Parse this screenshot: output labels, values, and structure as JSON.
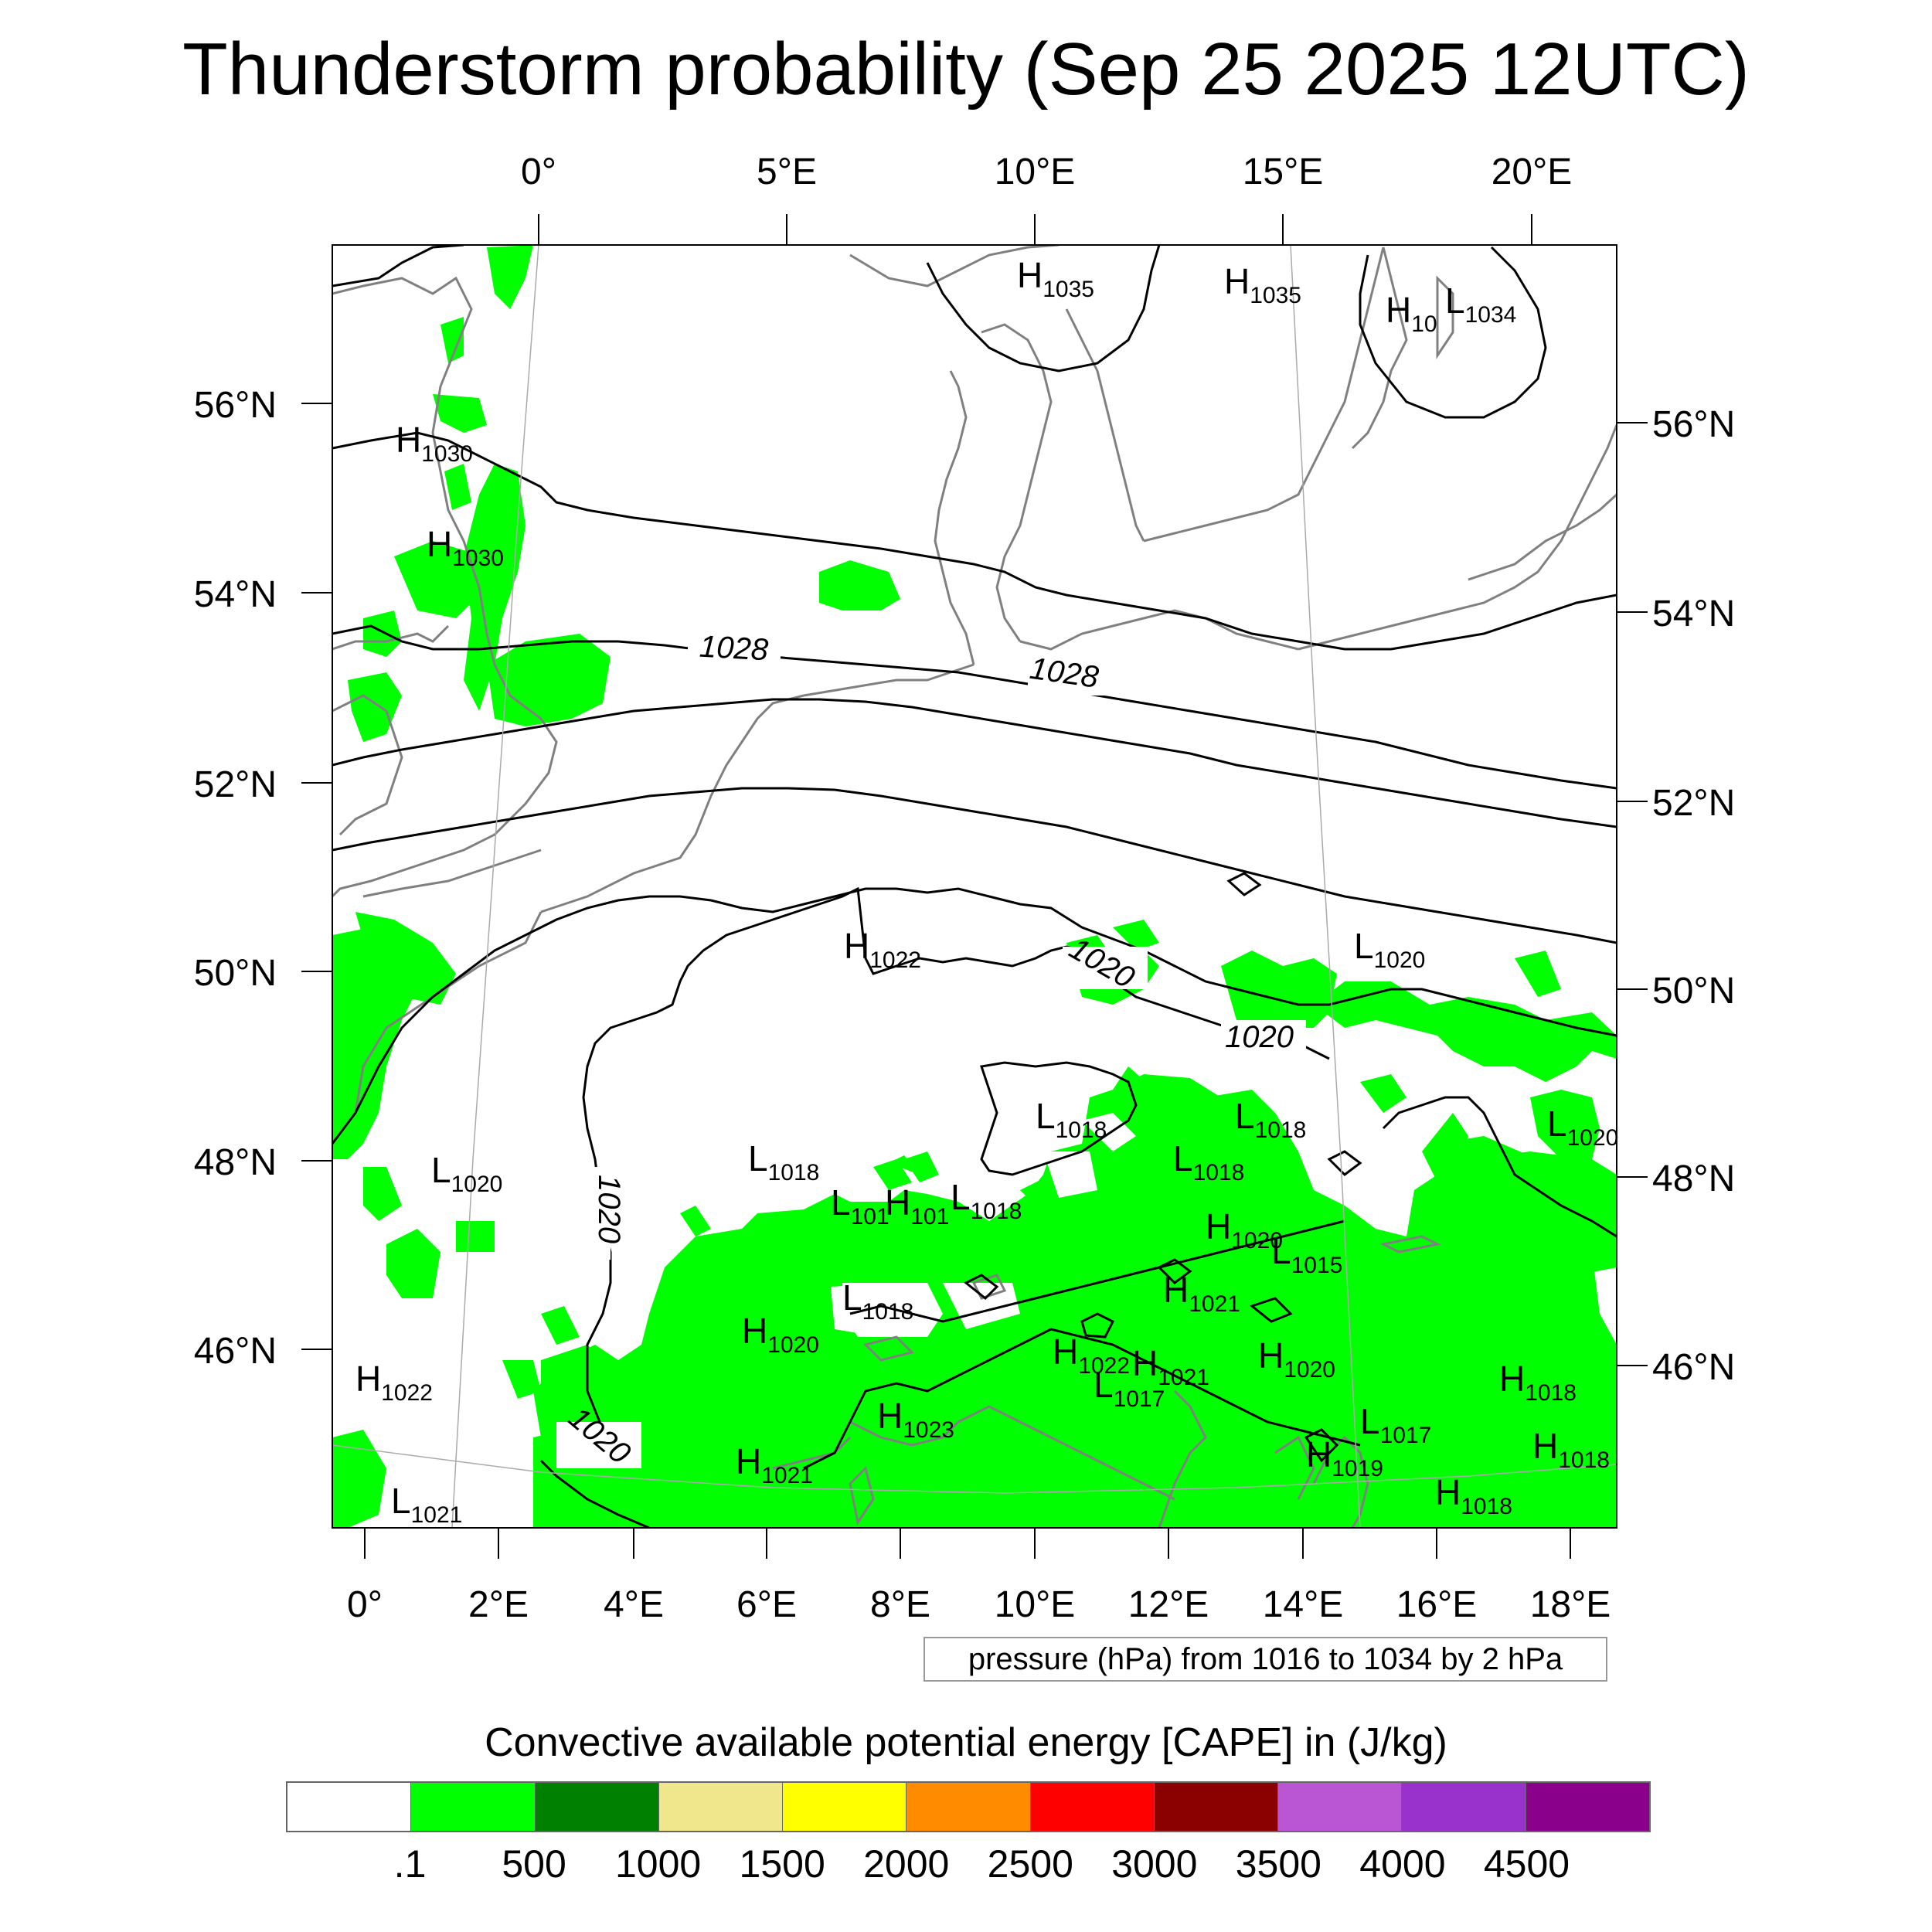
{
  "title": "Thunderstorm probability (Sep 25 2025 12UTC)",
  "top_lon_labels": [
    "0°",
    "5°E",
    "10°E",
    "15°E",
    "20°E"
  ],
  "bottom_lon_labels": [
    "0°",
    "2°E",
    "4°E",
    "6°E",
    "8°E",
    "10°E",
    "12°E",
    "14°E",
    "16°E",
    "18°E"
  ],
  "left_lat_labels": [
    "56°N",
    "54°N",
    "52°N",
    "50°N",
    "48°N",
    "46°N"
  ],
  "right_lat_labels": [
    "56°N",
    "54°N",
    "52°N",
    "50°N",
    "48°N",
    "46°N"
  ],
  "contour_labels": [
    "1028",
    "1028",
    "1020",
    "1020",
    "1020",
    "1020"
  ],
  "pressure_centers": [
    {
      "type": "H",
      "value": "1035"
    },
    {
      "type": "H",
      "value": "1035"
    },
    {
      "type": "H",
      "value": "10"
    },
    {
      "type": "L",
      "value": "1034"
    },
    {
      "type": "H",
      "value": "1030"
    },
    {
      "type": "H",
      "value": "1030"
    },
    {
      "type": "H",
      "value": "1022"
    },
    {
      "type": "L",
      "value": "1020"
    },
    {
      "type": "L",
      "value": "1018"
    },
    {
      "type": "L",
      "value": "1018"
    },
    {
      "type": "L",
      "value": "1020"
    },
    {
      "type": "L",
      "value": "1018"
    },
    {
      "type": "L",
      "value": "1018"
    },
    {
      "type": "L",
      "value": "1020"
    },
    {
      "type": "L",
      "value": "101"
    },
    {
      "type": "H",
      "value": "101"
    },
    {
      "type": "L",
      "value": "1018"
    },
    {
      "type": "H",
      "value": "1020"
    },
    {
      "type": "L",
      "value": "1015"
    },
    {
      "type": "L",
      "value": "1018"
    },
    {
      "type": "H",
      "value": "1021"
    },
    {
      "type": "H",
      "value": "1020"
    },
    {
      "type": "H",
      "value": "1022"
    },
    {
      "type": "H",
      "value": "1021"
    },
    {
      "type": "L",
      "value": "1017"
    },
    {
      "type": "H",
      "value": "1020"
    },
    {
      "type": "H",
      "value": "1018"
    },
    {
      "type": "H",
      "value": "1022"
    },
    {
      "type": "H",
      "value": "1023"
    },
    {
      "type": "L",
      "value": "1017"
    },
    {
      "type": "H",
      "value": "1018"
    },
    {
      "type": "H",
      "value": "1021"
    },
    {
      "type": "H",
      "value": "1019"
    },
    {
      "type": "H",
      "value": "1018"
    },
    {
      "type": "L",
      "value": "1021"
    }
  ],
  "pressure_legend": "pressure (hPa) from 1016 to 1034 by 2 hPa",
  "colorbar": {
    "title": "Convective available potential energy [CAPE] in (J/kg)",
    "colors": [
      "#FFFFFF",
      "#00FF00",
      "#008000",
      "#F0E68C",
      "#FFFF00",
      "#FF8C00",
      "#FF0000",
      "#8B0000",
      "#BA55D3",
      "#9932CC",
      "#8B008B"
    ],
    "labels": [
      ".1",
      "500",
      "1000",
      "1500",
      "2000",
      "2500",
      "3000",
      "3500",
      "4000",
      "4500"
    ]
  },
  "colors": {
    "cape_fill": "#00FF00",
    "coastline": "#808080",
    "isobar": "#000000"
  }
}
